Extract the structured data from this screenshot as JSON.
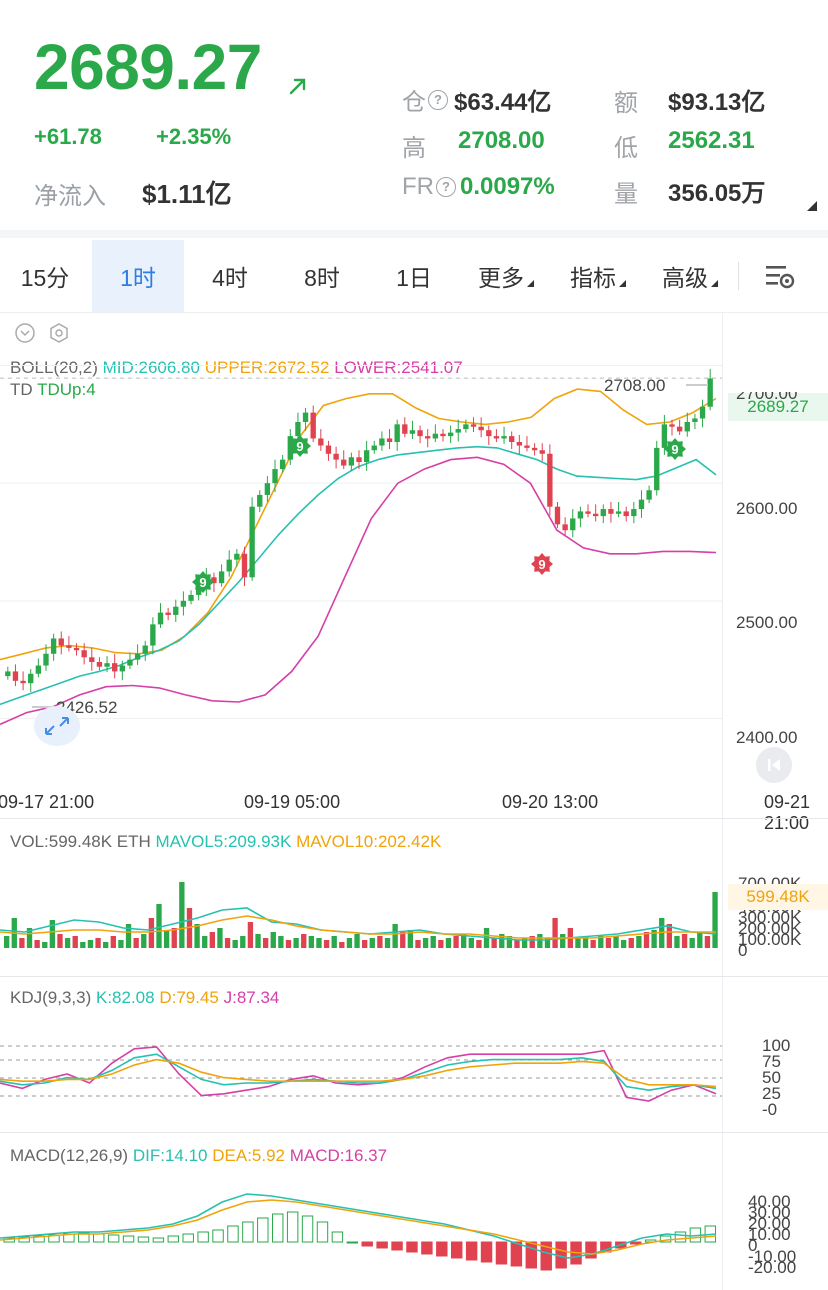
{
  "header": {
    "price": "2689.27",
    "change": "+61.78",
    "change_pct": "+2.35%",
    "net_inflow_label": "净流入",
    "net_inflow_value": "$1.11亿",
    "stats": {
      "position_label": "仓",
      "position_value": "$63.44亿",
      "amount_label": "额",
      "amount_value": "$93.13亿",
      "high_label": "高",
      "high_value": "2708.00",
      "low_label": "低",
      "low_value": "2562.31",
      "fr_label": "FR",
      "fr_value": "0.0097%",
      "volume_label": "量",
      "volume_value": "356.05万"
    }
  },
  "tabs": [
    {
      "label": "15分"
    },
    {
      "label": "1时"
    },
    {
      "label": "4时"
    },
    {
      "label": "8时"
    },
    {
      "label": "1日"
    },
    {
      "label": "更多"
    },
    {
      "label": "指标"
    },
    {
      "label": "高级"
    }
  ],
  "main_chart": {
    "boll_name": "BOLL(20,2)",
    "mid": "MID:2606.80",
    "upper": "UPPER:2672.52",
    "lower": "LOWER:2541.07",
    "td_name": "TD",
    "td_up": "TDUp:4",
    "high_marker": "2708.00",
    "low_marker": "2426.52",
    "current_price_tag": "2689.27",
    "y_axis": [
      "2700.00",
      "2600.00",
      "2500.00",
      "2400.00"
    ],
    "x_axis": [
      "09-17 21:00",
      "09-19 05:00",
      "09-20 13:00",
      "09-21 21:00"
    ],
    "td_marks": [
      "9",
      "9",
      "9",
      "9"
    ]
  },
  "vol_panel": {
    "vol": "VOL:599.48K ETH",
    "mavol5": "MAVOL5:209.93K",
    "mavol10": "MAVOL10:202.42K",
    "current_tag": "599.48K",
    "y_axis": [
      "700.00K",
      "400.00K",
      "300.00K",
      "200.00K",
      "100.00K",
      "0"
    ]
  },
  "kdj_panel": {
    "name": "KDJ(9,3,3)",
    "k": "K:82.08",
    "d": "D:79.45",
    "j": "J:87.34",
    "y_axis": [
      "100",
      "75",
      "50",
      "25",
      "-0"
    ]
  },
  "macd_panel": {
    "name": "MACD(12,26,9)",
    "dif": "DIF:14.10",
    "dea": "DEA:5.92",
    "macd": "MACD:16.37",
    "y_axis": [
      "40.00",
      "30.00",
      "20.00",
      "10.00",
      "0",
      "-10.00",
      "-20.00"
    ]
  },
  "colors": {
    "up": "#2aa84a",
    "down": "#e0424f",
    "mid": "#26c1b0",
    "upper": "#f0a30a",
    "lower": "#d63fa7",
    "accent": "#2f7de1"
  },
  "chart_data": {
    "type": "candlestick",
    "title": "",
    "x_ticks": [
      "09-17 21:00",
      "09-19 05:00",
      "09-20 13:00",
      "09-21 21:00"
    ],
    "ylim": [
      2380,
      2720
    ],
    "y_ticks": [
      2400,
      2500,
      2600,
      2700
    ],
    "close": [
      2440,
      2432,
      2430,
      2438,
      2445,
      2455,
      2468,
      2462,
      2460,
      2458,
      2452,
      2448,
      2444,
      2447,
      2440,
      2445,
      2450,
      2455,
      2462,
      2480,
      2490,
      2488,
      2495,
      2500,
      2505,
      2510,
      2520,
      2515,
      2525,
      2535,
      2540,
      2520,
      2580,
      2590,
      2600,
      2612,
      2620,
      2640,
      2652,
      2660,
      2638,
      2632,
      2625,
      2620,
      2615,
      2622,
      2618,
      2628,
      2632,
      2638,
      2635,
      2650,
      2642,
      2645,
      2640,
      2638,
      2642,
      2640,
      2643,
      2646,
      2650,
      2648,
      2645,
      2640,
      2638,
      2640,
      2635,
      2632,
      2630,
      2628,
      2625,
      2580,
      2565,
      2560,
      2570,
      2576,
      2574,
      2572,
      2578,
      2574,
      2576,
      2572,
      2578,
      2586,
      2594,
      2630,
      2650,
      2648,
      2644,
      2652,
      2655,
      2665,
      2689
    ],
    "series_mid": [
      2412,
      2418,
      2424,
      2430,
      2436,
      2440,
      2445,
      2452,
      2458,
      2466,
      2480,
      2498,
      2516,
      2536,
      2556,
      2574,
      2590,
      2604,
      2614,
      2620,
      2624,
      2626,
      2628,
      2630,
      2631,
      2630,
      2625,
      2620,
      2612,
      2606,
      2605,
      2604,
      2603,
      2606,
      2613,
      2620,
      2607
    ],
    "series_upper": [
      2450,
      2455,
      2460,
      2462,
      2460,
      2456,
      2455,
      2458,
      2470,
      2490,
      2520,
      2560,
      2600,
      2640,
      2666,
      2672,
      2676,
      2676,
      2664,
      2655,
      2652,
      2650,
      2652,
      2656,
      2672,
      2680,
      2678,
      2662,
      2650,
      2652,
      2660,
      2672
    ],
    "series_lower": [
      2395,
      2405,
      2410,
      2420,
      2427,
      2428,
      2426,
      2420,
      2415,
      2414,
      2420,
      2440,
      2470,
      2520,
      2570,
      2600,
      2612,
      2620,
      2622,
      2616,
      2600,
      2560,
      2545,
      2540,
      2540,
      2542,
      2542,
      2541
    ]
  }
}
